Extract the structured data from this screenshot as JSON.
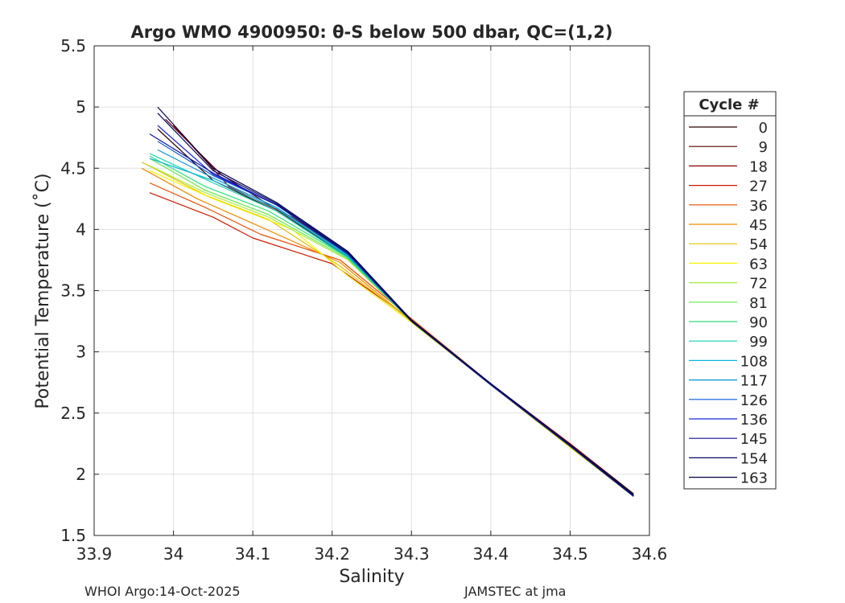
{
  "chart_data": {
    "type": "line",
    "title": "Argo WMO 4900950: θ-S below 500 dbar,  QC=(1,2)",
    "xlabel": "Salinity",
    "ylabel": "Potential Temperature (˚C)",
    "xlim": [
      33.9,
      34.6
    ],
    "ylim": [
      1.5,
      5.5
    ],
    "x_ticks": [
      "33.9",
      "34",
      "34.1",
      "34.2",
      "34.3",
      "34.4",
      "34.5",
      "34.6"
    ],
    "y_ticks": [
      "1.5",
      "2",
      "2.5",
      "3",
      "3.5",
      "4",
      "4.5",
      "5",
      "5.5"
    ],
    "grid": true,
    "legend_title": "Cycle #",
    "legend_position": "right",
    "series": [
      {
        "name": "0",
        "color": "#2a0000",
        "x": [
          33.98,
          34.05,
          34.13,
          34.22,
          34.3,
          34.4,
          34.5,
          34.58
        ],
        "y": [
          4.82,
          4.4,
          4.15,
          3.78,
          3.25,
          2.73,
          2.25,
          1.84
        ]
      },
      {
        "name": "9",
        "color": "#5c0000",
        "x": [
          33.99,
          34.06,
          34.14,
          34.22,
          34.3,
          34.4,
          34.5,
          34.58
        ],
        "y": [
          4.9,
          4.45,
          4.12,
          3.78,
          3.25,
          2.74,
          2.24,
          1.83
        ]
      },
      {
        "name": "18",
        "color": "#8f0000",
        "x": [
          34.0,
          34.07,
          34.15,
          34.22,
          34.3,
          34.4,
          34.5,
          34.58
        ],
        "y": [
          4.85,
          4.35,
          4.1,
          3.8,
          3.26,
          2.74,
          2.25,
          1.83
        ]
      },
      {
        "name": "27",
        "color": "#cc1a00",
        "x": [
          33.97,
          34.05,
          34.1,
          34.2,
          34.3,
          34.4,
          34.5,
          34.58
        ],
        "y": [
          4.3,
          4.1,
          3.93,
          3.72,
          3.26,
          2.73,
          2.22,
          1.82
        ]
      },
      {
        "name": "36",
        "color": "#e84a00",
        "x": [
          33.97,
          34.04,
          34.11,
          34.21,
          34.3,
          34.4,
          34.5,
          34.58
        ],
        "y": [
          4.38,
          4.18,
          3.96,
          3.75,
          3.27,
          2.74,
          2.23,
          1.82
        ]
      },
      {
        "name": "45",
        "color": "#ef8a00",
        "x": [
          33.96,
          34.03,
          34.1,
          34.21,
          34.3,
          34.4,
          34.5,
          34.58
        ],
        "y": [
          4.5,
          4.25,
          4.05,
          3.73,
          3.25,
          2.73,
          2.22,
          1.82
        ]
      },
      {
        "name": "54",
        "color": "#e0c000",
        "x": [
          33.96,
          34.04,
          34.12,
          34.21,
          34.3,
          34.4,
          34.5,
          34.58
        ],
        "y": [
          4.55,
          4.28,
          4.08,
          3.7,
          3.25,
          2.73,
          2.22,
          1.82
        ]
      },
      {
        "name": "63",
        "color": "#f5f500",
        "x": [
          33.97,
          34.05,
          34.15,
          34.22,
          34.3,
          34.4,
          34.5,
          34.58
        ],
        "y": [
          4.48,
          4.25,
          4.0,
          3.62,
          3.24,
          2.73,
          2.22,
          1.82
        ]
      },
      {
        "name": "72",
        "color": "#a6ee3c",
        "x": [
          33.97,
          34.04,
          34.12,
          34.22,
          34.3,
          34.4,
          34.5,
          34.58
        ],
        "y": [
          4.52,
          4.3,
          4.1,
          3.75,
          3.25,
          2.73,
          2.23,
          1.82
        ]
      },
      {
        "name": "81",
        "color": "#66e84a",
        "x": [
          33.97,
          34.04,
          34.12,
          34.22,
          34.3,
          34.4,
          34.5,
          34.58
        ],
        "y": [
          4.58,
          4.32,
          4.12,
          3.76,
          3.25,
          2.73,
          2.23,
          1.82
        ]
      },
      {
        "name": "90",
        "color": "#2ee07a",
        "x": [
          33.97,
          34.04,
          34.12,
          34.22,
          34.3,
          34.4,
          34.5,
          34.58
        ],
        "y": [
          4.6,
          4.35,
          4.15,
          3.77,
          3.25,
          2.73,
          2.23,
          1.82
        ]
      },
      {
        "name": "99",
        "color": "#14d2b0",
        "x": [
          33.97,
          34.05,
          34.13,
          34.22,
          34.3,
          34.4,
          34.5,
          34.58
        ],
        "y": [
          4.62,
          4.38,
          4.15,
          3.77,
          3.25,
          2.73,
          2.23,
          1.82
        ]
      },
      {
        "name": "108",
        "color": "#0ab4e0",
        "x": [
          33.97,
          34.05,
          34.13,
          34.22,
          34.3,
          34.4,
          34.5,
          34.58
        ],
        "y": [
          4.58,
          4.4,
          4.17,
          3.78,
          3.25,
          2.73,
          2.23,
          1.82
        ]
      },
      {
        "name": "117",
        "color": "#0a90d8",
        "x": [
          33.98,
          34.05,
          34.13,
          34.22,
          34.3,
          34.4,
          34.5,
          34.58
        ],
        "y": [
          4.65,
          4.42,
          4.18,
          3.79,
          3.25,
          2.73,
          2.23,
          1.82
        ]
      },
      {
        "name": "126",
        "color": "#0a5adc",
        "x": [
          33.98,
          34.05,
          34.13,
          34.22,
          34.3,
          34.4,
          34.5,
          34.58
        ],
        "y": [
          4.72,
          4.44,
          4.2,
          3.8,
          3.25,
          2.73,
          2.23,
          1.82
        ]
      },
      {
        "name": "136",
        "color": "#1a28d8",
        "x": [
          33.98,
          34.05,
          34.13,
          34.22,
          34.3,
          34.4,
          34.5,
          34.58
        ],
        "y": [
          4.85,
          4.45,
          4.2,
          3.8,
          3.25,
          2.73,
          2.23,
          1.82
        ]
      },
      {
        "name": "145",
        "color": "#10109a",
        "x": [
          33.97,
          34.05,
          34.13,
          34.22,
          34.3,
          34.4,
          34.5,
          34.58
        ],
        "y": [
          4.78,
          4.46,
          4.2,
          3.8,
          3.25,
          2.73,
          2.23,
          1.82
        ]
      },
      {
        "name": "154",
        "color": "#080866",
        "x": [
          33.98,
          34.05,
          34.13,
          34.22,
          34.3,
          34.4,
          34.5,
          34.58
        ],
        "y": [
          4.95,
          4.48,
          4.21,
          3.81,
          3.25,
          2.74,
          2.24,
          1.83
        ]
      },
      {
        "name": "163",
        "color": "#00003e",
        "x": [
          33.98,
          34.05,
          34.13,
          34.22,
          34.3,
          34.4,
          34.5,
          34.58
        ],
        "y": [
          5.0,
          4.5,
          4.22,
          3.82,
          3.26,
          2.74,
          2.24,
          1.83
        ]
      }
    ]
  },
  "footer": {
    "left": "WHOI Argo:14-Oct-2025",
    "right": "JAMSTEC at jma"
  }
}
